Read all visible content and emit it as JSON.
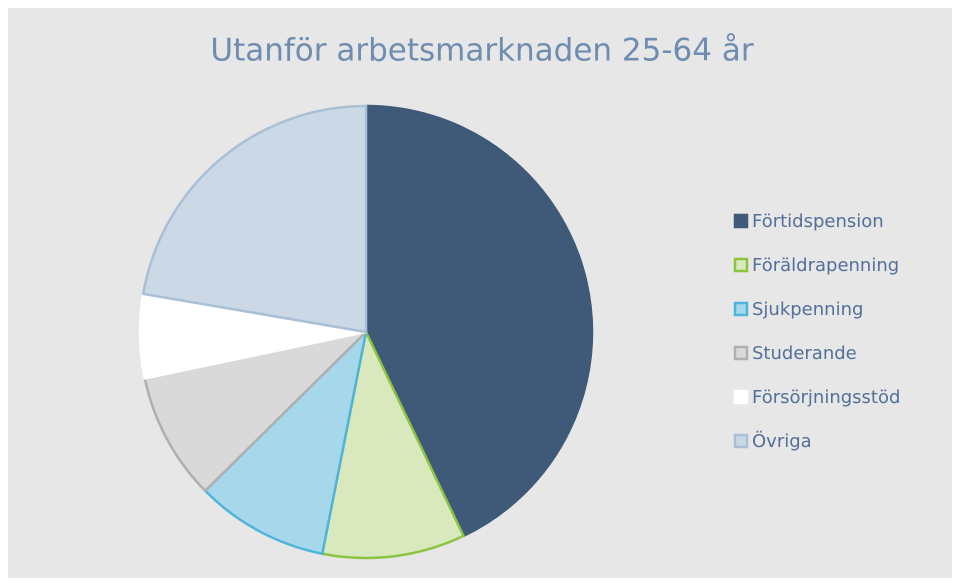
{
  "chart_data": {
    "type": "pie",
    "title": "Utanför arbetsmarknaden 25-64 år",
    "categories": [
      "Förtidspension",
      "Föräldrapenning",
      "Sjukpenning",
      "Studerande",
      "Försörjningsstöd",
      "Övriga"
    ],
    "values": [
      42.9,
      10.2,
      9.5,
      9.1,
      6.0,
      22.3
    ],
    "colors": [
      "#3e5a78",
      "#d9e8bd",
      "#a7d7ea",
      "#d9d9d9",
      "#ffffff",
      "#cbd8e5"
    ],
    "borders": [
      "#3e5a78",
      "#8cc43f",
      "#4db5dc",
      "#afafaf",
      "#ffffff",
      "#a9bfd5"
    ],
    "legend": "right"
  }
}
